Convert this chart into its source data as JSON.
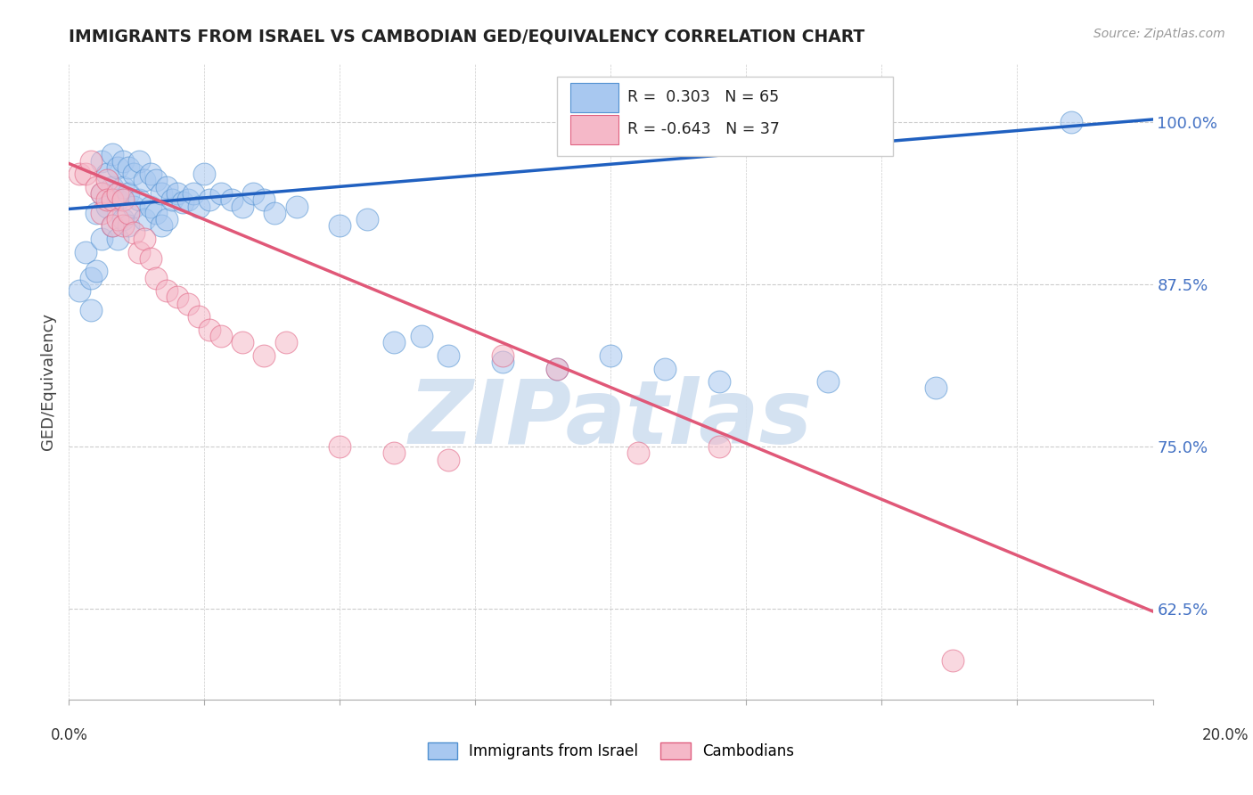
{
  "title": "IMMIGRANTS FROM ISRAEL VS CAMBODIAN GED/EQUIVALENCY CORRELATION CHART",
  "source": "Source: ZipAtlas.com",
  "ylabel": "GED/Equivalency",
  "ytick_labels": [
    "62.5%",
    "75.0%",
    "87.5%",
    "100.0%"
  ],
  "ytick_vals": [
    0.625,
    0.75,
    0.875,
    1.0
  ],
  "xmin": 0.0,
  "xmax": 0.2,
  "ymin": 0.555,
  "ymax": 1.045,
  "legend_label1": "Immigrants from Israel",
  "legend_label2": "Cambodians",
  "color_blue_fill": "#A8C8F0",
  "color_pink_fill": "#F5B8C8",
  "color_blue_edge": "#5090D0",
  "color_pink_edge": "#E06080",
  "color_blue_line": "#2060C0",
  "color_pink_line": "#E05878",
  "watermark_color": "#D0DFF0",
  "israel_x": [
    0.002,
    0.003,
    0.004,
    0.004,
    0.005,
    0.005,
    0.006,
    0.006,
    0.006,
    0.007,
    0.007,
    0.008,
    0.008,
    0.008,
    0.009,
    0.009,
    0.009,
    0.01,
    0.01,
    0.01,
    0.011,
    0.011,
    0.011,
    0.012,
    0.012,
    0.013,
    0.013,
    0.014,
    0.014,
    0.015,
    0.015,
    0.016,
    0.016,
    0.017,
    0.017,
    0.018,
    0.018,
    0.019,
    0.02,
    0.021,
    0.022,
    0.023,
    0.024,
    0.025,
    0.026,
    0.028,
    0.03,
    0.032,
    0.034,
    0.036,
    0.038,
    0.042,
    0.05,
    0.055,
    0.06,
    0.065,
    0.07,
    0.08,
    0.09,
    0.1,
    0.11,
    0.12,
    0.14,
    0.16,
    0.185
  ],
  "israel_y": [
    0.87,
    0.9,
    0.855,
    0.88,
    0.93,
    0.885,
    0.97,
    0.945,
    0.91,
    0.96,
    0.935,
    0.975,
    0.95,
    0.92,
    0.965,
    0.94,
    0.91,
    0.97,
    0.95,
    0.925,
    0.965,
    0.945,
    0.92,
    0.96,
    0.935,
    0.97,
    0.94,
    0.955,
    0.925,
    0.96,
    0.935,
    0.955,
    0.93,
    0.945,
    0.92,
    0.95,
    0.925,
    0.94,
    0.945,
    0.938,
    0.94,
    0.945,
    0.935,
    0.96,
    0.94,
    0.945,
    0.94,
    0.935,
    0.945,
    0.94,
    0.93,
    0.935,
    0.92,
    0.925,
    0.83,
    0.835,
    0.82,
    0.815,
    0.81,
    0.82,
    0.81,
    0.8,
    0.8,
    0.795,
    1.0
  ],
  "cambodian_x": [
    0.002,
    0.003,
    0.004,
    0.005,
    0.006,
    0.006,
    0.007,
    0.007,
    0.008,
    0.008,
    0.009,
    0.009,
    0.01,
    0.01,
    0.011,
    0.012,
    0.013,
    0.014,
    0.015,
    0.016,
    0.018,
    0.02,
    0.022,
    0.024,
    0.026,
    0.028,
    0.032,
    0.036,
    0.04,
    0.05,
    0.06,
    0.07,
    0.08,
    0.09,
    0.105,
    0.12,
    0.163
  ],
  "cambodian_y": [
    0.96,
    0.96,
    0.97,
    0.95,
    0.945,
    0.93,
    0.955,
    0.94,
    0.94,
    0.92,
    0.945,
    0.925,
    0.94,
    0.92,
    0.93,
    0.915,
    0.9,
    0.91,
    0.895,
    0.88,
    0.87,
    0.865,
    0.86,
    0.85,
    0.84,
    0.835,
    0.83,
    0.82,
    0.83,
    0.75,
    0.745,
    0.74,
    0.82,
    0.81,
    0.745,
    0.75,
    0.585
  ],
  "blue_line_x": [
    0.0,
    0.2
  ],
  "blue_line_y": [
    0.933,
    1.002
  ],
  "pink_line_x": [
    0.0,
    0.2
  ],
  "pink_line_y": [
    0.968,
    0.623
  ]
}
